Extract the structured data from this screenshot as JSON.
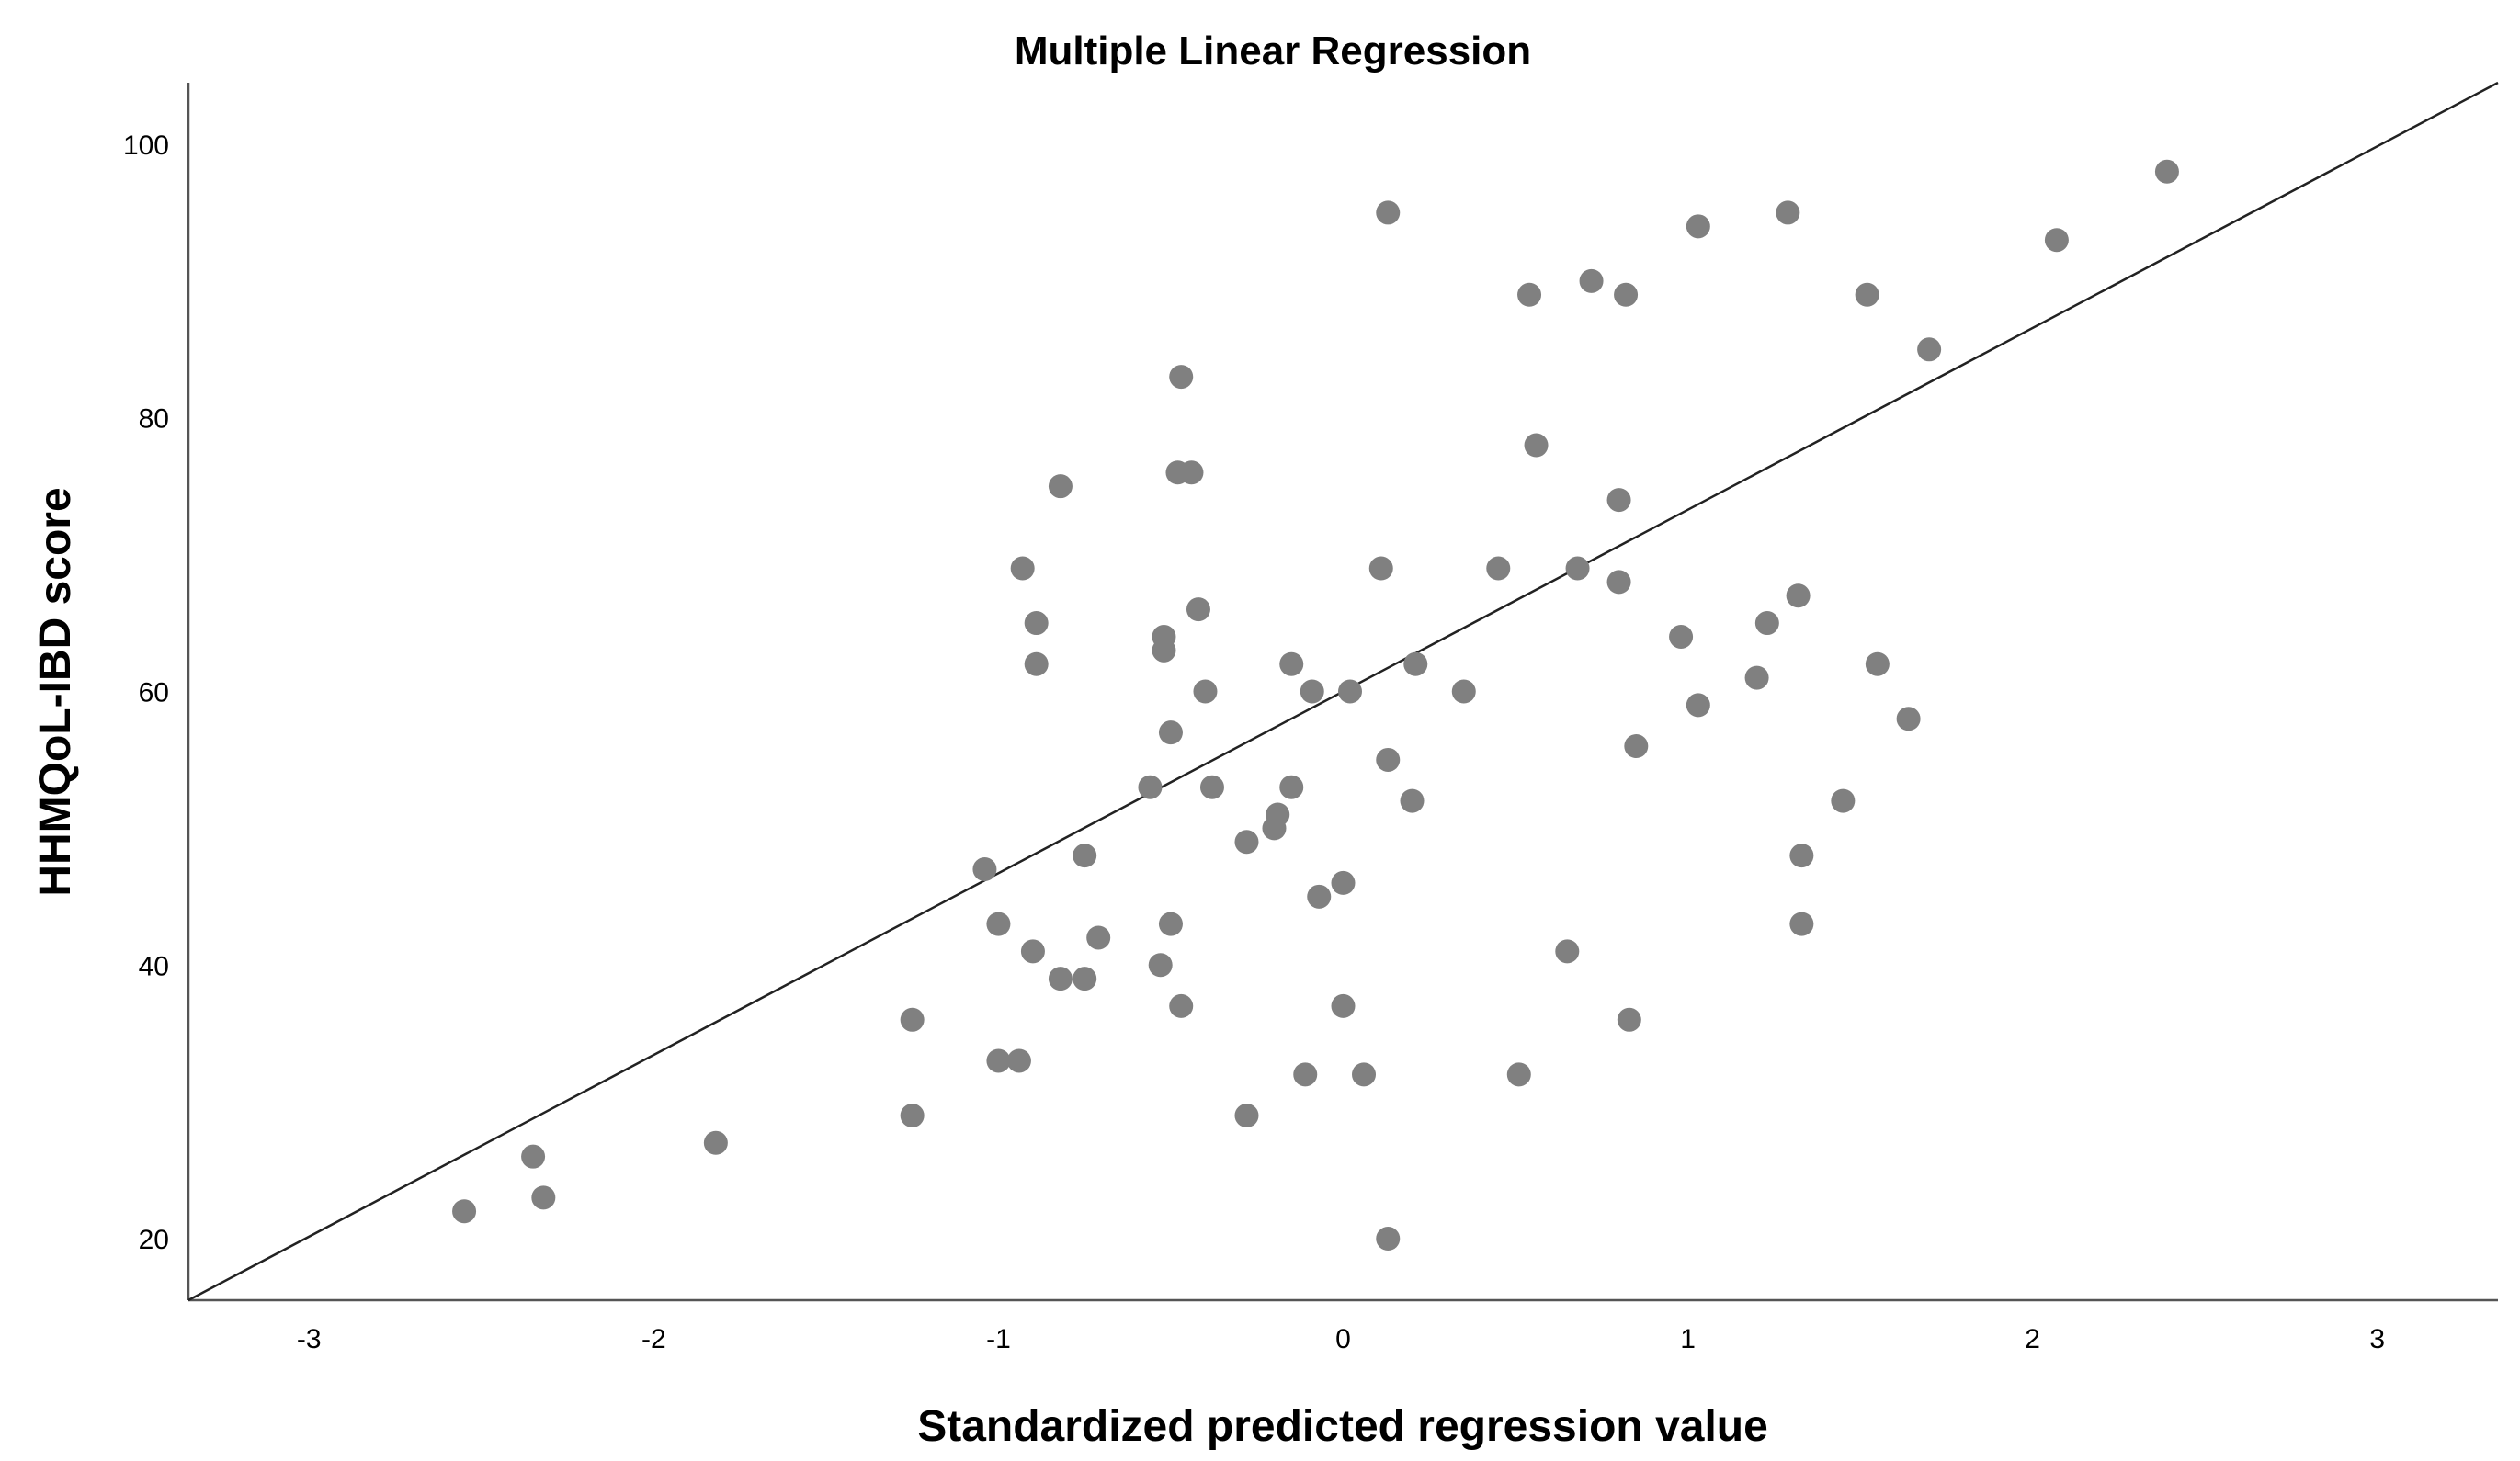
{
  "chart_data": {
    "type": "scatter",
    "title": "Multiple Linear Regression",
    "xlabel": "Standardized predicted regression value",
    "ylabel": "HHMQoL-IBD score",
    "xlim": [
      -3.35,
      3.35
    ],
    "ylim": [
      15.5,
      104.5
    ],
    "x_ticks": [
      {
        "value": -3,
        "label": "-3"
      },
      {
        "value": -2,
        "label": "-2"
      },
      {
        "value": -1,
        "label": "-1"
      },
      {
        "value": 0,
        "label": "0"
      },
      {
        "value": 1,
        "label": "1"
      },
      {
        "value": 2,
        "label": "2"
      },
      {
        "value": 3,
        "label": "3"
      }
    ],
    "y_ticks": [
      {
        "value": 20,
        "label": "20"
      },
      {
        "value": 40,
        "label": "40"
      },
      {
        "value": 60,
        "label": "60"
      },
      {
        "value": 80,
        "label": "80"
      },
      {
        "value": 100,
        "label": "100"
      }
    ],
    "grid": false,
    "point_color": "#808080",
    "line_color": "#222222",
    "fit_line": {
      "x": [
        -3.35,
        3.35
      ],
      "y": [
        15.5,
        104.5
      ]
    },
    "points": [
      {
        "x": -2.55,
        "y": 22
      },
      {
        "x": -2.35,
        "y": 26
      },
      {
        "x": -2.32,
        "y": 23
      },
      {
        "x": -1.82,
        "y": 27
      },
      {
        "x": -1.25,
        "y": 36
      },
      {
        "x": -1.25,
        "y": 29
      },
      {
        "x": -1.04,
        "y": 47
      },
      {
        "x": -1.0,
        "y": 43
      },
      {
        "x": -1.0,
        "y": 33
      },
      {
        "x": -0.94,
        "y": 33
      },
      {
        "x": -0.93,
        "y": 69
      },
      {
        "x": -0.89,
        "y": 65
      },
      {
        "x": -0.89,
        "y": 62
      },
      {
        "x": -0.9,
        "y": 41
      },
      {
        "x": -0.82,
        "y": 75
      },
      {
        "x": -0.82,
        "y": 39
      },
      {
        "x": -0.75,
        "y": 48
      },
      {
        "x": -0.75,
        "y": 39
      },
      {
        "x": -0.71,
        "y": 42
      },
      {
        "x": -0.56,
        "y": 53
      },
      {
        "x": -0.53,
        "y": 40
      },
      {
        "x": -0.52,
        "y": 64
      },
      {
        "x": -0.52,
        "y": 63
      },
      {
        "x": -0.5,
        "y": 57
      },
      {
        "x": -0.5,
        "y": 43
      },
      {
        "x": -0.48,
        "y": 76
      },
      {
        "x": -0.47,
        "y": 83
      },
      {
        "x": -0.47,
        "y": 37
      },
      {
        "x": -0.44,
        "y": 76
      },
      {
        "x": -0.42,
        "y": 66
      },
      {
        "x": -0.4,
        "y": 60
      },
      {
        "x": -0.38,
        "y": 53
      },
      {
        "x": -0.28,
        "y": 49
      },
      {
        "x": -0.28,
        "y": 29
      },
      {
        "x": -0.2,
        "y": 50
      },
      {
        "x": -0.19,
        "y": 51
      },
      {
        "x": -0.15,
        "y": 62
      },
      {
        "x": -0.15,
        "y": 53
      },
      {
        "x": -0.11,
        "y": 32
      },
      {
        "x": -0.09,
        "y": 60
      },
      {
        "x": -0.07,
        "y": 45
      },
      {
        "x": 0.0,
        "y": 46
      },
      {
        "x": 0.0,
        "y": 37
      },
      {
        "x": 0.02,
        "y": 60
      },
      {
        "x": 0.06,
        "y": 32
      },
      {
        "x": 0.11,
        "y": 69
      },
      {
        "x": 0.13,
        "y": 95
      },
      {
        "x": 0.13,
        "y": 55
      },
      {
        "x": 0.13,
        "y": 20
      },
      {
        "x": 0.2,
        "y": 52
      },
      {
        "x": 0.21,
        "y": 62
      },
      {
        "x": 0.35,
        "y": 60
      },
      {
        "x": 0.45,
        "y": 69
      },
      {
        "x": 0.51,
        "y": 32
      },
      {
        "x": 0.54,
        "y": 89
      },
      {
        "x": 0.56,
        "y": 78
      },
      {
        "x": 0.65,
        "y": 41
      },
      {
        "x": 0.68,
        "y": 69
      },
      {
        "x": 0.72,
        "y": 90
      },
      {
        "x": 0.8,
        "y": 74
      },
      {
        "x": 0.8,
        "y": 68
      },
      {
        "x": 0.82,
        "y": 89
      },
      {
        "x": 0.83,
        "y": 36
      },
      {
        "x": 0.85,
        "y": 56
      },
      {
        "x": 0.98,
        "y": 64
      },
      {
        "x": 1.03,
        "y": 94
      },
      {
        "x": 1.03,
        "y": 59
      },
      {
        "x": 1.2,
        "y": 61
      },
      {
        "x": 1.23,
        "y": 65
      },
      {
        "x": 1.29,
        "y": 95
      },
      {
        "x": 1.32,
        "y": 67
      },
      {
        "x": 1.33,
        "y": 48
      },
      {
        "x": 1.33,
        "y": 43
      },
      {
        "x": 1.45,
        "y": 52
      },
      {
        "x": 1.52,
        "y": 89
      },
      {
        "x": 1.55,
        "y": 62
      },
      {
        "x": 1.64,
        "y": 58
      },
      {
        "x": 1.7,
        "y": 85
      },
      {
        "x": 2.07,
        "y": 93
      },
      {
        "x": 2.39,
        "y": 98
      }
    ]
  }
}
